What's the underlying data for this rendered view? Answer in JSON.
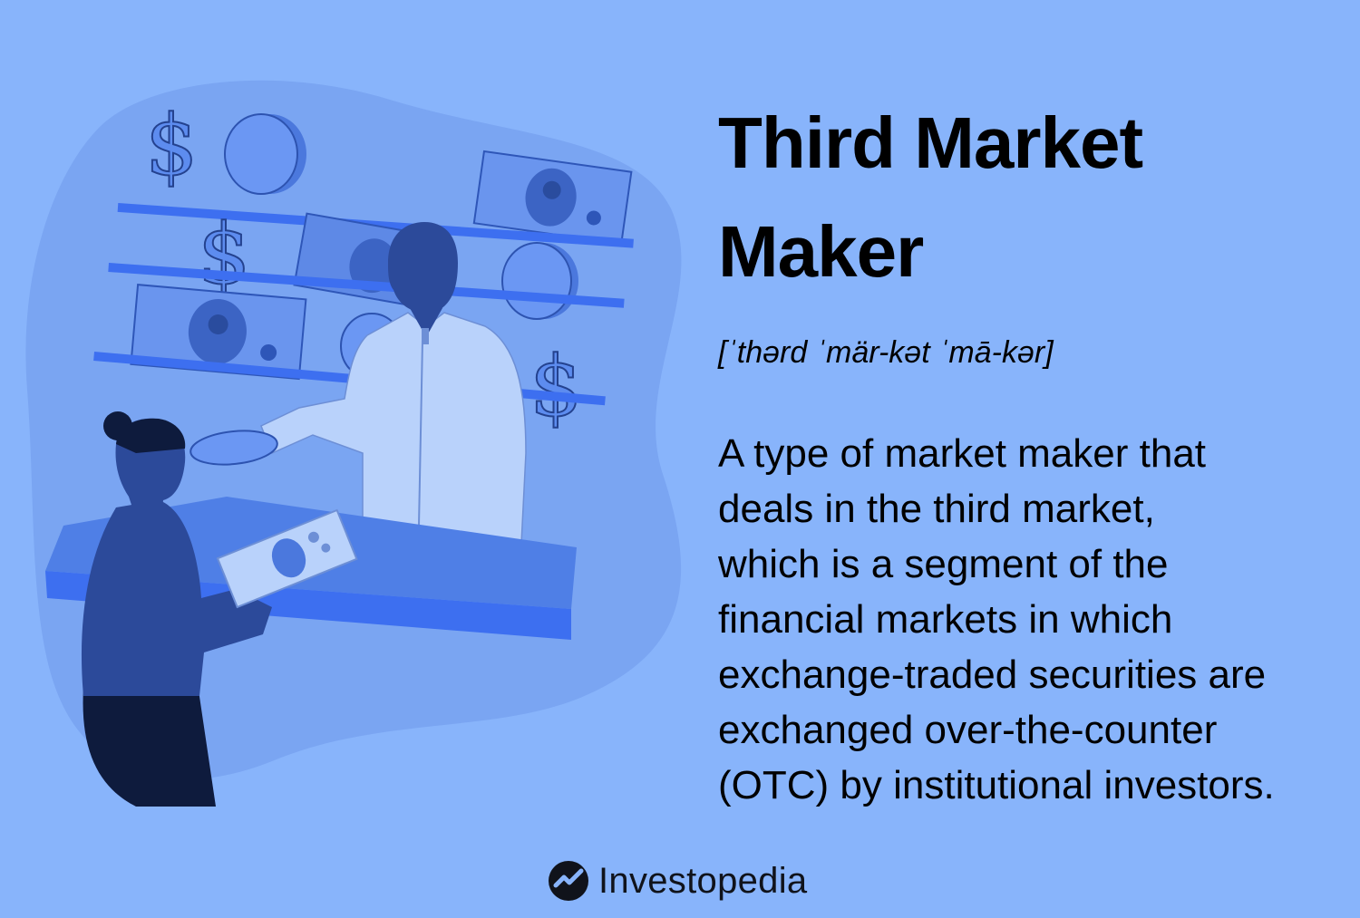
{
  "title": {
    "lines": [
      "Third Market",
      "Maker"
    ]
  },
  "pronunciation": "[ˈthərd ˈmär-kət ˈmā-kər]",
  "definition": {
    "lines": [
      "A type of market maker that",
      "deals in the third market,",
      "which is a segment of the",
      "financial markets in which",
      "exchange-traded securities are",
      "exchanged over-the-counter",
      "(OTC) by institutional investors."
    ]
  },
  "brand": {
    "name": "Investopedia",
    "icon": "investopedia-logo-icon"
  },
  "illustration": {
    "shelf_symbols": [
      "$",
      "$",
      "$"
    ]
  },
  "colors": {
    "background": "#88b4fb",
    "blob": "#7aa5f2",
    "shelf": "#3d6ff0",
    "dark_figure": "#2c4a9a",
    "coat": "#b9d2fb",
    "text": "#000000"
  }
}
